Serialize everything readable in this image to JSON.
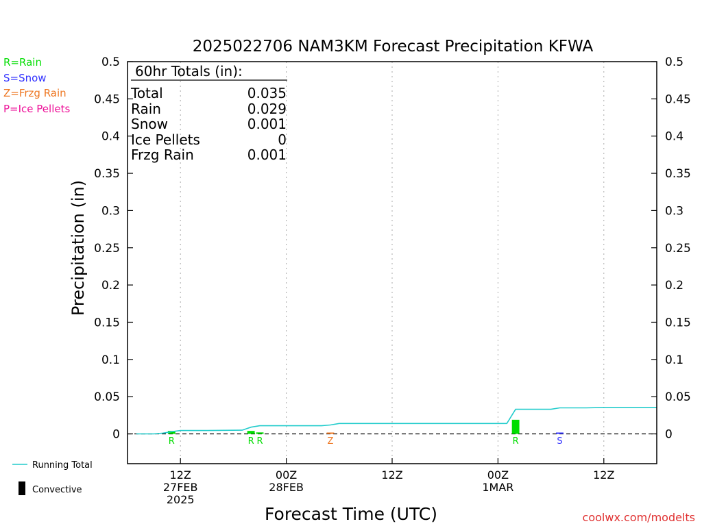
{
  "page": {
    "title": "2025022706 NAM3KM Forecast Precipitation KFWA",
    "ylabel": "Precipitation (in)",
    "xlabel": "Forecast Time (UTC)",
    "credit": "coolwx.com/modelts"
  },
  "legend_ptype": [
    {
      "label": "R=Rain",
      "color": "#00dd00"
    },
    {
      "label": "S=Snow",
      "color": "#3333ff"
    },
    {
      "label": "Z=Frzg Rain",
      "color": "#ee7722"
    },
    {
      "label": "P=Ice Pellets",
      "color": "#ee1199"
    }
  ],
  "legend_lines": {
    "running_total": "Running Total",
    "convective": "Convective",
    "running_total_color": "#22cccc"
  },
  "totals": {
    "header": "60hr Totals (in):",
    "rows": [
      {
        "label": "Total",
        "value": "0.035"
      },
      {
        "label": "Rain",
        "value": "0.029"
      },
      {
        "label": "Snow",
        "value": "0.001"
      },
      {
        "label": "Ice Pellets",
        "value": "0"
      },
      {
        "label": "Frzg Rain",
        "value": "0.001"
      }
    ]
  },
  "chart_data": {
    "type": "bar",
    "title": "2025022706 NAM3KM Forecast Precipitation KFWA",
    "xlabel": "Forecast Time (UTC)",
    "ylabel": "Precipitation (in)",
    "ylim": [
      -0.04,
      0.5
    ],
    "xlim": [
      6,
      66
    ],
    "yticks": [
      "0",
      "0.05",
      "0.1",
      "0.15",
      "0.2",
      "0.25",
      "0.3",
      "0.35",
      "0.4",
      "0.45",
      "0.5"
    ],
    "ytick_values": [
      0,
      0.05,
      0.1,
      0.15,
      0.2,
      0.25,
      0.3,
      0.35,
      0.4,
      0.45,
      0.5
    ],
    "xticks": [
      {
        "hour": 12,
        "lines": [
          "12Z",
          "27FEB",
          "2025"
        ]
      },
      {
        "hour": 24,
        "lines": [
          "00Z",
          "28FEB"
        ]
      },
      {
        "hour": 36,
        "lines": [
          "12Z"
        ]
      },
      {
        "hour": 48,
        "lines": [
          "00Z",
          "1MAR"
        ]
      },
      {
        "hour": 60,
        "lines": [
          "12Z"
        ]
      }
    ],
    "grid": "vertical dotted at ticks",
    "bars": [
      {
        "hour": 11,
        "value": 0.004,
        "ptype": "R",
        "color": "#00dd00"
      },
      {
        "hour": 20,
        "value": 0.004,
        "ptype": "R",
        "color": "#00dd00"
      },
      {
        "hour": 21,
        "value": 0.002,
        "ptype": "R",
        "color": "#00dd00"
      },
      {
        "hour": 29,
        "value": 0.001,
        "ptype": "Z",
        "color": "#ee7722"
      },
      {
        "hour": 50,
        "value": 0.019,
        "ptype": "R",
        "color": "#00dd00"
      },
      {
        "hour": 55,
        "value": 0.001,
        "ptype": "S",
        "color": "#3333ff"
      }
    ],
    "running_total": {
      "name": "Running Total",
      "x": [
        7,
        9,
        10,
        11,
        12,
        15,
        19,
        20,
        21,
        23,
        28,
        29,
        30,
        33,
        43,
        49,
        50,
        53,
        54,
        55,
        58,
        60,
        63,
        66
      ],
      "y": [
        0,
        0,
        0.001,
        0.003,
        0.0045,
        0.0045,
        0.005,
        0.009,
        0.011,
        0.011,
        0.011,
        0.012,
        0.014,
        0.014,
        0.014,
        0.014,
        0.033,
        0.033,
        0.033,
        0.035,
        0.035,
        0.0355,
        0.0355,
        0.0355
      ]
    }
  }
}
